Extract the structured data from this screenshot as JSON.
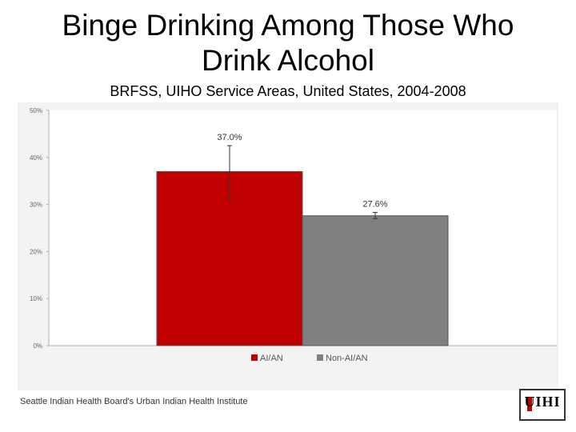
{
  "slide": {
    "title_line1": "Binge Drinking Among Those Who",
    "title_line2": "Drink Alcohol",
    "subtitle": "BRFSS, UIHO Service Areas, United States, 2004-2008",
    "footer": "Seattle Indian Health Board's Urban Indian Health Institute"
  },
  "logo": {
    "name": "uihi-logo"
  },
  "chart_data": {
    "type": "bar",
    "categories": [
      "AI/AN",
      "Non-AI/AN"
    ],
    "values": [
      37.0,
      27.6
    ],
    "data_labels": [
      "37.0%",
      "27.6%"
    ],
    "error_bars": [
      [
        31.0,
        42.5
      ],
      [
        27.0,
        28.3
      ]
    ],
    "colors": [
      "#c00000",
      "#808080"
    ],
    "yticks": [
      "0%",
      "10%",
      "20%",
      "30%",
      "40%",
      "50%"
    ],
    "ylim": [
      0,
      50
    ],
    "legend": [
      "AI/AN",
      "Non-AI/AN"
    ],
    "legend_position": "bottom",
    "grid": false
  }
}
